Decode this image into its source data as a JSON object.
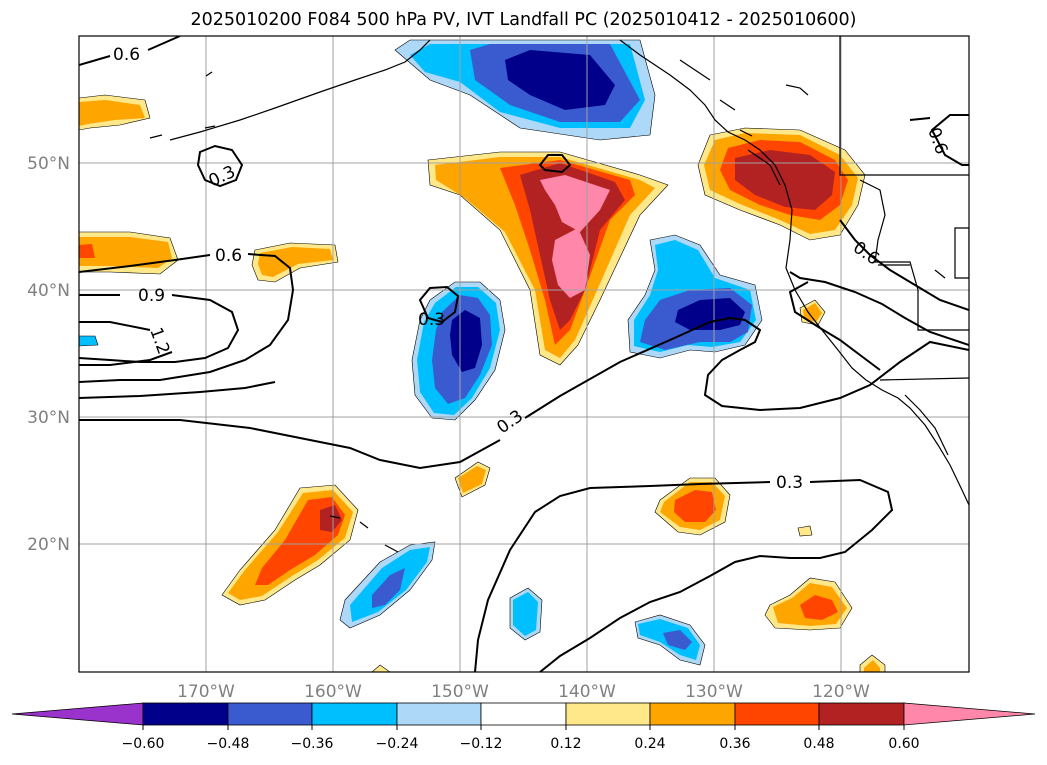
{
  "title": "2025010200 F084 500 hPa PV, IVT Landfall PC (2025010412 - 2025010600)",
  "map": {
    "longitude_labels": [
      "170°W",
      "160°W",
      "150°W",
      "140°W",
      "130°W",
      "120°W"
    ],
    "latitude_labels": [
      "50°N",
      "40°N",
      "30°N",
      "20°N"
    ],
    "grid": true,
    "coastline_color": "#000000",
    "state_borders": true
  },
  "contour_labels": [
    "0.6",
    "0.3",
    "0.6",
    "0.9",
    "1.2",
    "0.3",
    "0.3",
    "0.3",
    "0.6",
    "0.6"
  ],
  "colorbar": {
    "ticks": [
      "−0.60",
      "−0.48",
      "−0.36",
      "−0.24",
      "−0.12",
      "0.12",
      "0.24",
      "0.36",
      "0.48",
      "0.60"
    ],
    "colors": [
      "#9933cc",
      "#00008b",
      "#3a5bd0",
      "#00bfff",
      "#add8f7",
      "#ffffff",
      "#ffe88a",
      "#ffa500",
      "#ff4500",
      "#b22222",
      "#ff88aa"
    ],
    "extend": "both"
  }
}
